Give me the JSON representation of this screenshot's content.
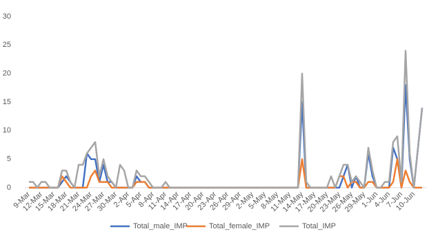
{
  "chart_data": {
    "type": "line",
    "categories": [
      "9-Mar",
      null,
      null,
      "12-Mar",
      null,
      null,
      "15-Mar",
      null,
      null,
      "18-Mar",
      null,
      null,
      "21-Mar",
      null,
      null,
      "24-Mar",
      null,
      null,
      "27-Mar",
      null,
      null,
      "30-Mar",
      null,
      null,
      "2-Apr",
      null,
      null,
      "5-Apr",
      null,
      null,
      "8-Apr",
      null,
      null,
      "11-Apr",
      null,
      null,
      "14-Apr",
      null,
      null,
      "17-Apr",
      null,
      null,
      "20-Apr",
      null,
      null,
      "23-Apr",
      null,
      null,
      "26-Apr",
      null,
      null,
      "29-Apr",
      null,
      null,
      "2-May",
      null,
      null,
      "5-May",
      null,
      null,
      "8-May",
      null,
      null,
      "11-May",
      null,
      null,
      "14-May",
      null,
      null,
      "17-May",
      null,
      null,
      "20-May",
      null,
      null,
      "23-May",
      null,
      null,
      "26-May",
      null,
      null,
      "29-May",
      null,
      null,
      "1-Jun",
      null,
      null,
      "4-Jun",
      null,
      null,
      "7-Jun",
      null,
      null,
      "10-Jun",
      null,
      null
    ],
    "series": [
      {
        "name": "Total_male_IMP",
        "color": "#4472c4",
        "values": [
          0,
          0,
          0,
          0,
          0,
          0,
          0,
          0,
          1,
          2,
          1,
          0,
          0,
          0,
          6,
          5,
          5,
          1,
          4,
          1,
          1,
          0,
          0,
          0,
          0,
          0,
          2,
          1,
          1,
          0,
          0,
          0,
          0,
          0,
          0,
          0,
          0,
          0,
          0,
          0,
          0,
          0,
          0,
          0,
          0,
          0,
          0,
          0,
          0,
          0,
          0,
          0,
          0,
          0,
          0,
          0,
          0,
          0,
          0,
          0,
          0,
          0,
          0,
          0,
          0,
          0,
          15,
          0,
          0,
          0,
          0,
          0,
          0,
          0,
          0,
          0,
          2,
          4,
          0,
          2,
          0,
          0,
          6,
          2,
          0,
          0,
          0,
          0,
          7,
          5,
          0,
          18,
          5,
          0,
          7,
          14
        ]
      },
      {
        "name": "Total_female_IMP",
        "color": "#ed7d31",
        "values": [
          0,
          0,
          0,
          0,
          0,
          0,
          0,
          0,
          2,
          1,
          0,
          0,
          0,
          0,
          0,
          2,
          3,
          1,
          1,
          1,
          0,
          0,
          0,
          0,
          0,
          0,
          1,
          1,
          1,
          0,
          0,
          0,
          0,
          0,
          0,
          0,
          0,
          0,
          0,
          0,
          0,
          0,
          0,
          0,
          0,
          0,
          0,
          0,
          0,
          0,
          0,
          0,
          0,
          0,
          0,
          0,
          0,
          0,
          0,
          0,
          0,
          0,
          0,
          0,
          0,
          0,
          5,
          0,
          0,
          0,
          0,
          0,
          0,
          0,
          0,
          2,
          2,
          0,
          1,
          1,
          0,
          0,
          1,
          1,
          0,
          0,
          0,
          0,
          1,
          5,
          0,
          3,
          1,
          0,
          0,
          0
        ]
      },
      {
        "name": "Total_IMP",
        "color": "#a5a5a5",
        "values": [
          1,
          1,
          0,
          1,
          1,
          0,
          0,
          0,
          3,
          3,
          1,
          0,
          4,
          4,
          6,
          7,
          8,
          2,
          5,
          2,
          1,
          0,
          4,
          3,
          0,
          0,
          3,
          2,
          2,
          1,
          0,
          0,
          0,
          1,
          0,
          0,
          0,
          0,
          0,
          0,
          0,
          0,
          0,
          0,
          0,
          0,
          0,
          0,
          0,
          0,
          0,
          0,
          0,
          0,
          0,
          0,
          0,
          0,
          0,
          0,
          0,
          0,
          0,
          0,
          0,
          0,
          20,
          1,
          0,
          0,
          0,
          0,
          0,
          2,
          0,
          2,
          4,
          4,
          1,
          2,
          1,
          0,
          7,
          3,
          0,
          0,
          1,
          1,
          8,
          9,
          1,
          24,
          6,
          0,
          7,
          14
        ]
      }
    ],
    "ylim": [
      0,
      30
    ],
    "yticks": [
      0,
      5,
      10,
      15,
      20,
      25,
      30
    ],
    "grid": false,
    "legend": "bottom"
  }
}
